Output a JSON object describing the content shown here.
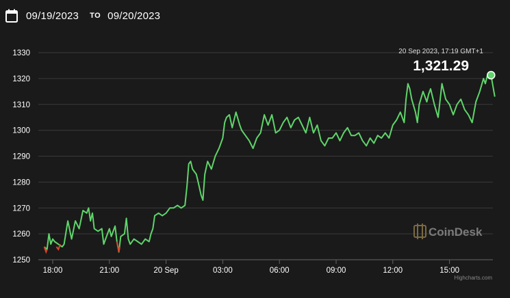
{
  "header": {
    "start_date": "09/19/2023",
    "to_label": "TO",
    "end_date": "09/20/2023",
    "icon": "calendar-icon"
  },
  "colors": {
    "background": "#1a1a1a",
    "line_up": "#5fd56a",
    "line_down": "#e0452b",
    "grid": "#3a3a3a",
    "text": "#ffffff",
    "muted": "#bbbbbb"
  },
  "tooltip": {
    "timestamp": "20 Sep 2023, 17:19 GMT+1",
    "value": "1,321.29"
  },
  "watermark": {
    "brand": "CoinDesk",
    "credit": "Highcharts.com"
  },
  "chart_data": {
    "type": "line",
    "title": "",
    "xlabel": "",
    "ylabel": "",
    "ylim": [
      1250,
      1330
    ],
    "yticks": [
      "1250",
      "1260",
      "1270",
      "1280",
      "1290",
      "1300",
      "1310",
      "1320",
      "1330"
    ],
    "xticks": [
      {
        "label": "18:00",
        "h": 0
      },
      {
        "label": "21:00",
        "h": 3
      },
      {
        "label": "20 Sep",
        "h": 6
      },
      {
        "label": "03:00",
        "h": 9
      },
      {
        "label": "06:00",
        "h": 12
      },
      {
        "label": "09:00",
        "h": 15
      },
      {
        "label": "12:00",
        "h": 18
      },
      {
        "label": "15:00",
        "h": 21
      }
    ],
    "grid": true,
    "legend": "none",
    "series": [
      {
        "baseline": 1255,
        "points": [
          [
            -0.45,
            1255
          ],
          [
            -0.3,
            1254
          ],
          [
            -0.2,
            1260
          ],
          [
            -0.1,
            1256
          ],
          [
            0.0,
            1258
          ],
          [
            0.1,
            1257
          ],
          [
            0.3,
            1256
          ],
          [
            0.5,
            1255
          ],
          [
            0.6,
            1256
          ],
          [
            0.8,
            1265
          ],
          [
            1.0,
            1258
          ],
          [
            1.2,
            1265
          ],
          [
            1.4,
            1262
          ],
          [
            1.6,
            1269
          ],
          [
            1.8,
            1268
          ],
          [
            1.9,
            1270
          ],
          [
            2.0,
            1265
          ],
          [
            2.1,
            1268
          ],
          [
            2.2,
            1262
          ],
          [
            2.4,
            1261
          ],
          [
            2.6,
            1262
          ],
          [
            2.7,
            1256
          ],
          [
            2.9,
            1260
          ],
          [
            3.0,
            1262
          ],
          [
            3.1,
            1259
          ],
          [
            3.3,
            1263
          ],
          [
            3.4,
            1257
          ],
          [
            3.5,
            1253
          ],
          [
            3.6,
            1259
          ],
          [
            3.8,
            1260
          ],
          [
            3.9,
            1266
          ],
          [
            4.0,
            1258
          ],
          [
            4.1,
            1256
          ],
          [
            4.3,
            1258
          ],
          [
            4.5,
            1257
          ],
          [
            4.7,
            1256
          ],
          [
            4.9,
            1258
          ],
          [
            5.1,
            1257
          ],
          [
            5.2,
            1260
          ],
          [
            5.3,
            1262
          ],
          [
            5.4,
            1267
          ],
          [
            5.6,
            1268
          ],
          [
            5.8,
            1267
          ],
          [
            6.0,
            1268
          ],
          [
            6.2,
            1270
          ],
          [
            6.4,
            1270
          ],
          [
            6.6,
            1271
          ],
          [
            6.8,
            1270
          ],
          [
            7.0,
            1271
          ],
          [
            7.1,
            1278
          ],
          [
            7.2,
            1287
          ],
          [
            7.3,
            1288
          ],
          [
            7.4,
            1285
          ],
          [
            7.6,
            1283
          ],
          [
            7.7,
            1280
          ],
          [
            7.85,
            1275
          ],
          [
            7.95,
            1273
          ],
          [
            8.05,
            1283
          ],
          [
            8.2,
            1288
          ],
          [
            8.4,
            1285
          ],
          [
            8.6,
            1290
          ],
          [
            8.8,
            1293
          ],
          [
            9.0,
            1297
          ],
          [
            9.1,
            1303
          ],
          [
            9.2,
            1305
          ],
          [
            9.35,
            1306
          ],
          [
            9.5,
            1301
          ],
          [
            9.7,
            1307
          ],
          [
            9.9,
            1302
          ],
          [
            10.0,
            1300
          ],
          [
            10.2,
            1298
          ],
          [
            10.4,
            1296
          ],
          [
            10.6,
            1293
          ],
          [
            10.8,
            1297
          ],
          [
            11.0,
            1299
          ],
          [
            11.2,
            1306
          ],
          [
            11.4,
            1302
          ],
          [
            11.6,
            1306
          ],
          [
            11.8,
            1299
          ],
          [
            12.0,
            1300
          ],
          [
            12.2,
            1303
          ],
          [
            12.4,
            1305
          ],
          [
            12.6,
            1301
          ],
          [
            12.8,
            1304
          ],
          [
            13.0,
            1305
          ],
          [
            13.2,
            1302
          ],
          [
            13.4,
            1299
          ],
          [
            13.6,
            1305
          ],
          [
            13.8,
            1299
          ],
          [
            14.0,
            1302
          ],
          [
            14.2,
            1296
          ],
          [
            14.4,
            1294
          ],
          [
            14.6,
            1297
          ],
          [
            14.8,
            1297
          ],
          [
            15.0,
            1299
          ],
          [
            15.2,
            1296
          ],
          [
            15.4,
            1299
          ],
          [
            15.6,
            1301
          ],
          [
            15.8,
            1298
          ],
          [
            16.0,
            1298
          ],
          [
            16.2,
            1299
          ],
          [
            16.4,
            1296
          ],
          [
            16.6,
            1294
          ],
          [
            16.8,
            1297
          ],
          [
            17.0,
            1295
          ],
          [
            17.2,
            1298
          ],
          [
            17.4,
            1297
          ],
          [
            17.6,
            1299
          ],
          [
            17.8,
            1297
          ],
          [
            18.0,
            1302
          ],
          [
            18.2,
            1304
          ],
          [
            18.4,
            1307
          ],
          [
            18.6,
            1303
          ],
          [
            18.7,
            1312
          ],
          [
            18.8,
            1318
          ],
          [
            18.9,
            1316
          ],
          [
            19.0,
            1312
          ],
          [
            19.2,
            1307
          ],
          [
            19.3,
            1303
          ],
          [
            19.4,
            1310
          ],
          [
            19.6,
            1315
          ],
          [
            19.8,
            1311
          ],
          [
            19.9,
            1314
          ],
          [
            20.0,
            1316
          ],
          [
            20.2,
            1310
          ],
          [
            20.4,
            1305
          ],
          [
            20.6,
            1318
          ],
          [
            20.8,
            1312
          ],
          [
            21.0,
            1310
          ],
          [
            21.2,
            1306
          ],
          [
            21.4,
            1310
          ],
          [
            21.6,
            1312
          ],
          [
            21.8,
            1308
          ],
          [
            22.0,
            1306
          ],
          [
            22.2,
            1303
          ],
          [
            22.4,
            1311
          ],
          [
            22.6,
            1315
          ],
          [
            22.8,
            1320
          ],
          [
            22.9,
            1318
          ],
          [
            23.0,
            1321
          ],
          [
            23.1,
            1320
          ],
          [
            23.2,
            1321.3
          ],
          [
            23.3,
            1317
          ],
          [
            23.4,
            1313
          ]
        ],
        "down_segments": [
          [
            [
              -0.45,
              1255
            ],
            [
              -0.35,
              1253
            ],
            [
              -0.3,
              1254
            ]
          ],
          [
            [
              0.2,
              1255
            ],
            [
              0.3,
              1254
            ],
            [
              0.4,
              1256
            ]
          ],
          [
            [
              3.4,
              1257
            ],
            [
              3.5,
              1253
            ],
            [
              3.55,
              1255
            ]
          ]
        ]
      }
    ]
  }
}
